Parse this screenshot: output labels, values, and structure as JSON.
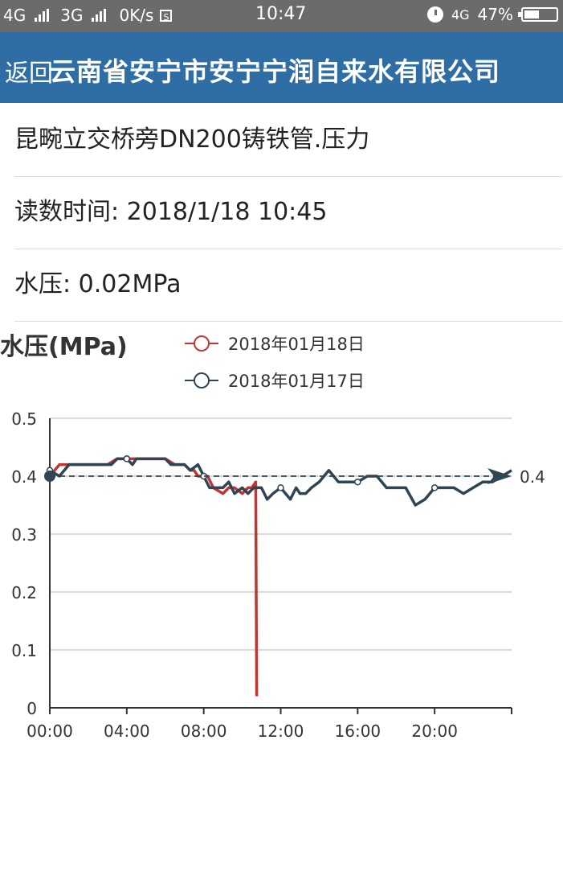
{
  "status_bar": {
    "network1": "4G",
    "network2": "3G",
    "speed": "0K/s",
    "sim_icon": "S",
    "time": "10:47",
    "network3": "4G",
    "battery_percent": "47%",
    "battery_level": 0.47
  },
  "header": {
    "back_label": "返回",
    "title": "云南省安宁市安宁宁润自来水有限公司"
  },
  "info": {
    "station": "昆畹立交桥旁DN200铸铁管.压力",
    "reading_time": "读数时间: 2018/1/18 10:45",
    "pressure": "水压: 0.02MPa"
  },
  "chart_data": {
    "type": "line",
    "title": "水压(MPa)",
    "x_ticks": [
      "00:00",
      "04:00",
      "08:00",
      "12:00",
      "16:00",
      "20:00"
    ],
    "y_ticks": [
      "0",
      "0.1",
      "0.2",
      "0.3",
      "0.4",
      "0.5"
    ],
    "ylim": [
      0,
      0.5
    ],
    "xlim_hours": [
      0,
      24
    ],
    "grid": true,
    "markline": {
      "value": 0.4,
      "label": "0.4"
    },
    "series": [
      {
        "name": "2018年01月18日",
        "color": "#c23531",
        "x": [
          0,
          0.5,
          1,
          2,
          3,
          3.5,
          4,
          4.5,
          5,
          6,
          6.5,
          7,
          7.3,
          7.5,
          7.7,
          8,
          8.2,
          8.5,
          9,
          9.3,
          9.6,
          10,
          10.3,
          10.5,
          10.7,
          10.75
        ],
        "y": [
          0.4,
          0.42,
          0.42,
          0.42,
          0.42,
          0.43,
          0.43,
          0.43,
          0.43,
          0.43,
          0.42,
          0.42,
          0.41,
          0.41,
          0.4,
          0.4,
          0.4,
          0.38,
          0.37,
          0.38,
          0.38,
          0.37,
          0.38,
          0.38,
          0.39,
          0.02
        ]
      },
      {
        "name": "2018年01月17日",
        "color": "#2f4554",
        "x": [
          0,
          0.5,
          1,
          2,
          3,
          3.2,
          3.5,
          4,
          4.3,
          4.5,
          5,
          6,
          6.3,
          6.6,
          7,
          7.3,
          7.7,
          8,
          8.3,
          8.6,
          9,
          9.3,
          9.6,
          10,
          10.3,
          10.6,
          11,
          11.3,
          11.6,
          12,
          12.5,
          12.8,
          13,
          13.3,
          13.6,
          14,
          14.5,
          15,
          15.5,
          16,
          16.5,
          17,
          17.5,
          18,
          18.5,
          19,
          19.5,
          20,
          20.5,
          21,
          21.5,
          22,
          22.5,
          23,
          23.5,
          24
        ],
        "y": [
          0.41,
          0.4,
          0.42,
          0.42,
          0.42,
          0.42,
          0.43,
          0.43,
          0.42,
          0.43,
          0.43,
          0.43,
          0.42,
          0.42,
          0.42,
          0.41,
          0.42,
          0.4,
          0.38,
          0.38,
          0.38,
          0.39,
          0.37,
          0.38,
          0.37,
          0.38,
          0.38,
          0.36,
          0.37,
          0.38,
          0.36,
          0.38,
          0.37,
          0.37,
          0.38,
          0.39,
          0.41,
          0.39,
          0.39,
          0.39,
          0.4,
          0.4,
          0.38,
          0.38,
          0.38,
          0.35,
          0.36,
          0.38,
          0.38,
          0.38,
          0.37,
          0.38,
          0.39,
          0.39,
          0.4,
          0.41
        ]
      }
    ]
  }
}
